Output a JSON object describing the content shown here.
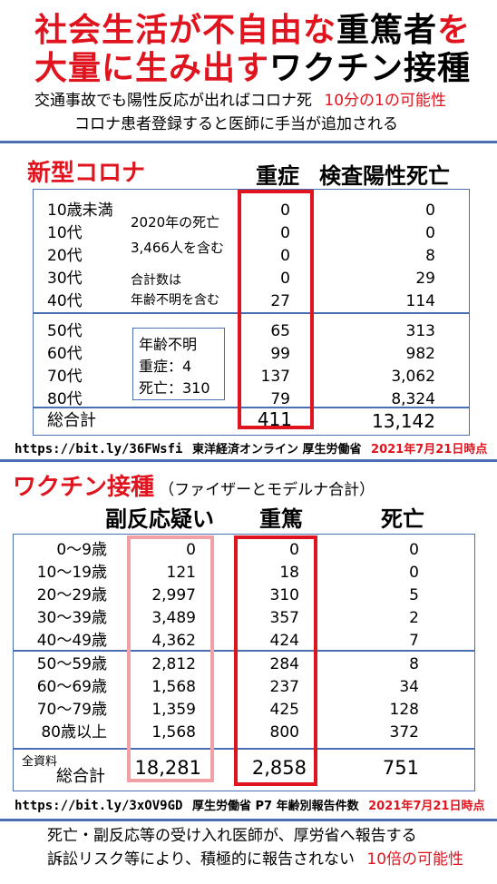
{
  "header": {
    "title_line1_red": "社会生活が不自由な",
    "title_line1_black": "重篤者",
    "title_line1_red2": "を",
    "title_line2_red": "大量に生み出す",
    "title_line2_black": "ワクチン接種",
    "sub1_text": "交通事故でも陽性反応が出ればコロナ死",
    "sub1_red": "10分の1の可能性",
    "sub2_text": "コロナ患者登録すると医師に手当が追加される"
  },
  "corona": {
    "section_title": "新型コロナ",
    "col_severe": "重症",
    "col_death": "検査陽性死亡",
    "note1": "2020年の死亡",
    "note2": "3,466人を含む",
    "note3": "合計数は",
    "note4": "年齢不明を含む",
    "unknown_title": "年齢不明",
    "unknown_severe": "重症：4",
    "unknown_death": "死亡：310",
    "rows": [
      {
        "age": "10歳未満",
        "severe": "0",
        "death": "0"
      },
      {
        "age": "10代",
        "severe": "0",
        "death": "0"
      },
      {
        "age": "20代",
        "severe": "0",
        "death": "8"
      },
      {
        "age": "30代",
        "severe": "0",
        "death": "29"
      },
      {
        "age": "40代",
        "severe": "27",
        "death": "114"
      },
      {
        "age": "50代",
        "severe": "65",
        "death": "313"
      },
      {
        "age": "60代",
        "severe": "99",
        "death": "982"
      },
      {
        "age": "70代",
        "severe": "137",
        "death": "3,062"
      },
      {
        "age": "80代",
        "severe": "79",
        "death": "8,324"
      }
    ],
    "total_label": "総合計",
    "total_severe": "411",
    "total_death": "13,142",
    "source_url": "https://bit.ly/36FWsfi",
    "source_text": "東洋経済オンライン 厚生労働省",
    "source_date": "2021年7月21日時点"
  },
  "vaccine": {
    "section_title": "ワクチン接種",
    "section_sub": "（ファイザーとモデルナ合計）",
    "col_side": "副反応疑い",
    "col_serious": "重篤",
    "col_death": "死亡",
    "rows": [
      {
        "age": "0～9歳",
        "side": "0",
        "serious": "0",
        "death": "0"
      },
      {
        "age": "10～19歳",
        "side": "121",
        "serious": "18",
        "death": "0"
      },
      {
        "age": "20～29歳",
        "side": "2,997",
        "serious": "310",
        "death": "5"
      },
      {
        "age": "30～39歳",
        "side": "3,489",
        "serious": "357",
        "death": "2"
      },
      {
        "age": "40～49歳",
        "side": "4,362",
        "serious": "424",
        "death": "7"
      },
      {
        "age": "50～59歳",
        "side": "2,812",
        "serious": "284",
        "death": "8"
      },
      {
        "age": "60～69歳",
        "side": "1,568",
        "serious": "237",
        "death": "34"
      },
      {
        "age": "70～79歳",
        "side": "1,359",
        "serious": "425",
        "death": "128"
      },
      {
        "age": "80歳以上",
        "side": "1,568",
        "serious": "800",
        "death": "372"
      }
    ],
    "total_pre": "全資料",
    "total_label": "総合計",
    "total_side": "18,281",
    "total_serious": "2,858",
    "total_death": "751",
    "source_url": "https://bit.ly/3xOV9GD",
    "source_text": "厚生労働省 P7 年齢別報告件数",
    "source_date": "2021年7月21日時点"
  },
  "footer": {
    "line1": "死亡・副反応等の受け入れ医師が、厚労省へ報告する",
    "line2_text": "訴訟リスク等により、積極的に報告されない",
    "line2_red": "10倍の可能性"
  }
}
